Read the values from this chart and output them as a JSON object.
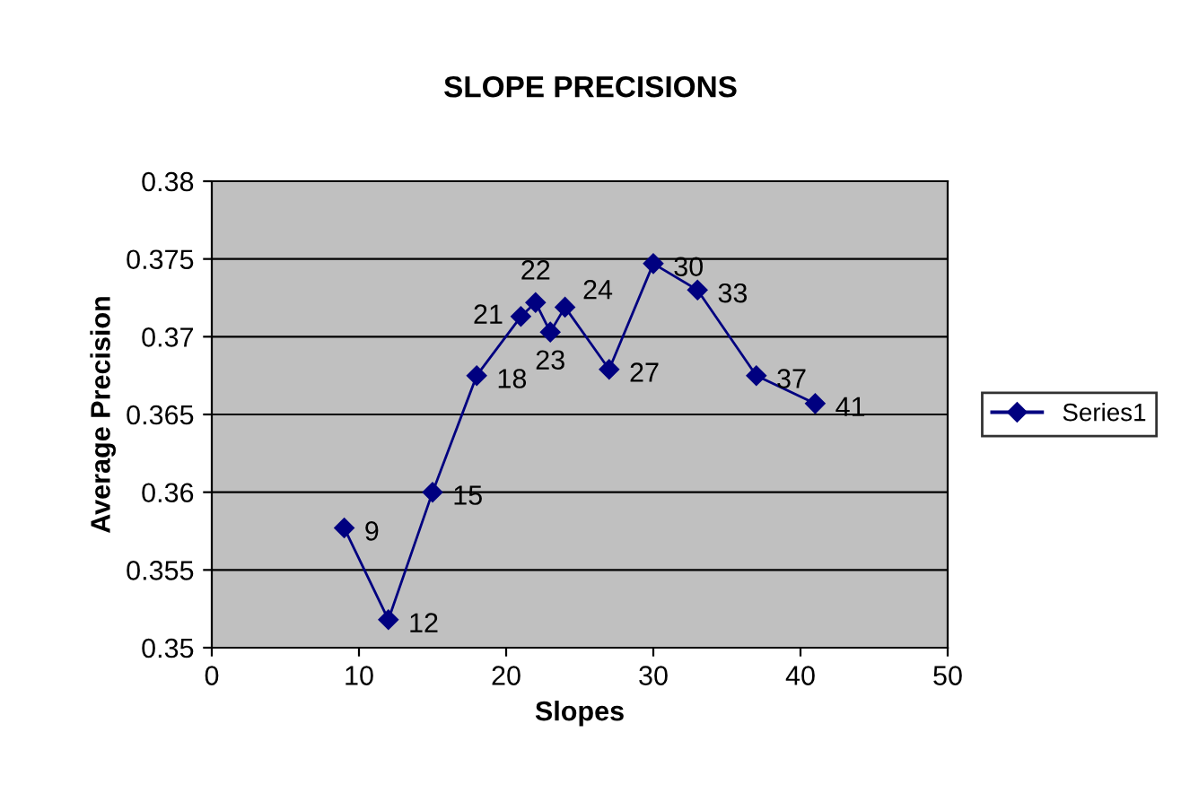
{
  "chart_data": {
    "type": "line",
    "title": "SLOPE PRECISIONS",
    "xlabel": "Slopes",
    "ylabel": "Average Precision",
    "x": [
      9,
      12,
      15,
      18,
      21,
      22,
      23,
      24,
      27,
      30,
      33,
      37,
      41
    ],
    "series": [
      {
        "name": "Series1",
        "color": "#000080",
        "values": [
          0.3577,
          0.3518,
          0.36,
          0.3675,
          0.3713,
          0.3722,
          0.3703,
          0.3719,
          0.3679,
          0.3747,
          0.373,
          0.3675,
          0.3657
        ]
      }
    ],
    "annotations": [
      {
        "text": "9",
        "x": 9,
        "y": 0.3577
      },
      {
        "text": "12",
        "x": 12,
        "y": 0.3518
      },
      {
        "text": "15",
        "x": 15,
        "y": 0.36
      },
      {
        "text": "18",
        "x": 18,
        "y": 0.3675
      },
      {
        "text": "21",
        "x": 21,
        "y": 0.3713
      },
      {
        "text": "22",
        "x": 22,
        "y": 0.3722
      },
      {
        "text": "23",
        "x": 23,
        "y": 0.3703
      },
      {
        "text": "24",
        "x": 24,
        "y": 0.3719
      },
      {
        "text": "27",
        "x": 27,
        "y": 0.3679
      },
      {
        "text": "30",
        "x": 30,
        "y": 0.3747
      },
      {
        "text": "33",
        "x": 33,
        "y": 0.373
      },
      {
        "text": "37",
        "x": 37,
        "y": 0.3675
      },
      {
        "text": "41",
        "x": 41,
        "y": 0.3657
      }
    ],
    "xlim": [
      0,
      50
    ],
    "xticks": [
      0,
      10,
      20,
      30,
      40,
      50
    ],
    "ylim": [
      0.35,
      0.38
    ],
    "yticks": [
      {
        "value": 0.35,
        "label": "0.35"
      },
      {
        "value": 0.355,
        "label": "0.355"
      },
      {
        "value": 0.36,
        "label": "0.36"
      },
      {
        "value": 0.365,
        "label": "0.365"
      },
      {
        "value": 0.37,
        "label": "0.37"
      },
      {
        "value": 0.375,
        "label": "0.375"
      },
      {
        "value": 0.38,
        "label": "0.38"
      }
    ],
    "grid": "y",
    "legend": "right",
    "marker": "diamond",
    "line_style": "solid"
  }
}
